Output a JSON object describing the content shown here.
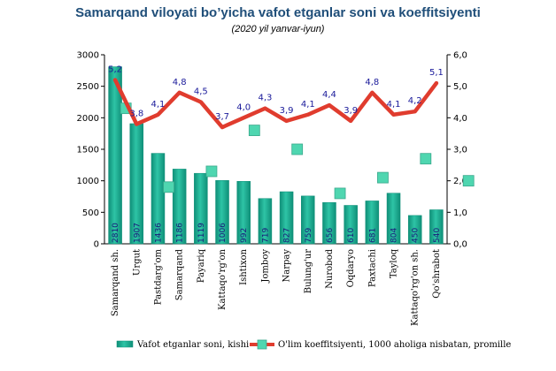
{
  "title": "Samarqand viloyati bo’yicha vafot etganlar soni va koeffitsiyenti",
  "subtitle": "(2020 yil yanvar-iyun)",
  "colors": {
    "bar": "#2ec4a6",
    "bar_edge": "#0f8f78",
    "line": "#e03c2e",
    "marker": "#4fd6b0"
  },
  "chart_data": {
    "type": "bar",
    "categories": [
      "Samarqand sh.",
      "Urgut",
      "Pastdarg'om",
      "Samarqand",
      "Payariq",
      "Kattaqo'rg'on",
      "Ishtixon",
      "Jomboy",
      "Narpay",
      "Bulung'ur",
      "Nurobod",
      "Oqdaryo",
      "Paxtachi",
      "Tayloq",
      "Kattaqo'rg'on sh.",
      "Qo'shrabot"
    ],
    "series": [
      {
        "name": "Vafot etganlar soni, kishi",
        "type": "bar",
        "axis": "left",
        "values": [
          2810,
          1907,
          1436,
          1186,
          1119,
          1006,
          992,
          719,
          827,
          759,
          656,
          610,
          681,
          804,
          450,
          540
        ],
        "labels": [
          "2810",
          "1907",
          "1436",
          "1186",
          "1119",
          "1006",
          "992",
          "719",
          "827",
          "759",
          "656",
          "610",
          "681",
          "804",
          "450",
          "540"
        ]
      },
      {
        "name": "O'lim koeffitsiyenti, 1000 aholiga nisbatan, promille",
        "type": "line",
        "axis": "right",
        "values": [
          5.2,
          3.8,
          4.1,
          4.8,
          4.5,
          3.7,
          4.0,
          4.3,
          3.9,
          4.1,
          4.4,
          3.9,
          4.8,
          4.1,
          4.2,
          5.1
        ],
        "labels": [
          "5,2",
          "3,8",
          "4,1",
          "4,8",
          "4,5",
          "3,7",
          "4,0",
          "4,3",
          "3,9",
          "4,1",
          "4,4",
          "3,9",
          "4,8",
          "4,1",
          "4,2",
          "5,1"
        ]
      }
    ],
    "markers": [
      4.3,
      1.8,
      2.3,
      3.6,
      3.0,
      1.6,
      2.1,
      2.7,
      2.0
    ],
    "y_left": {
      "min": 0,
      "max": 3000,
      "ticks": [
        "0",
        "500",
        "1000",
        "1500",
        "2000",
        "2500",
        "3000"
      ]
    },
    "y_right": {
      "min": 0,
      "max": 6,
      "ticks": [
        "0,0",
        "1,0",
        "2,0",
        "3,0",
        "4,0",
        "5,0",
        "6,0"
      ]
    },
    "grid": false,
    "legend_position": "bottom"
  },
  "legend": {
    "bar": "Vafot etganlar soni, kishi",
    "line": "O'lim koeffitsiyenti, 1000 aholiga nisbatan, promille"
  }
}
